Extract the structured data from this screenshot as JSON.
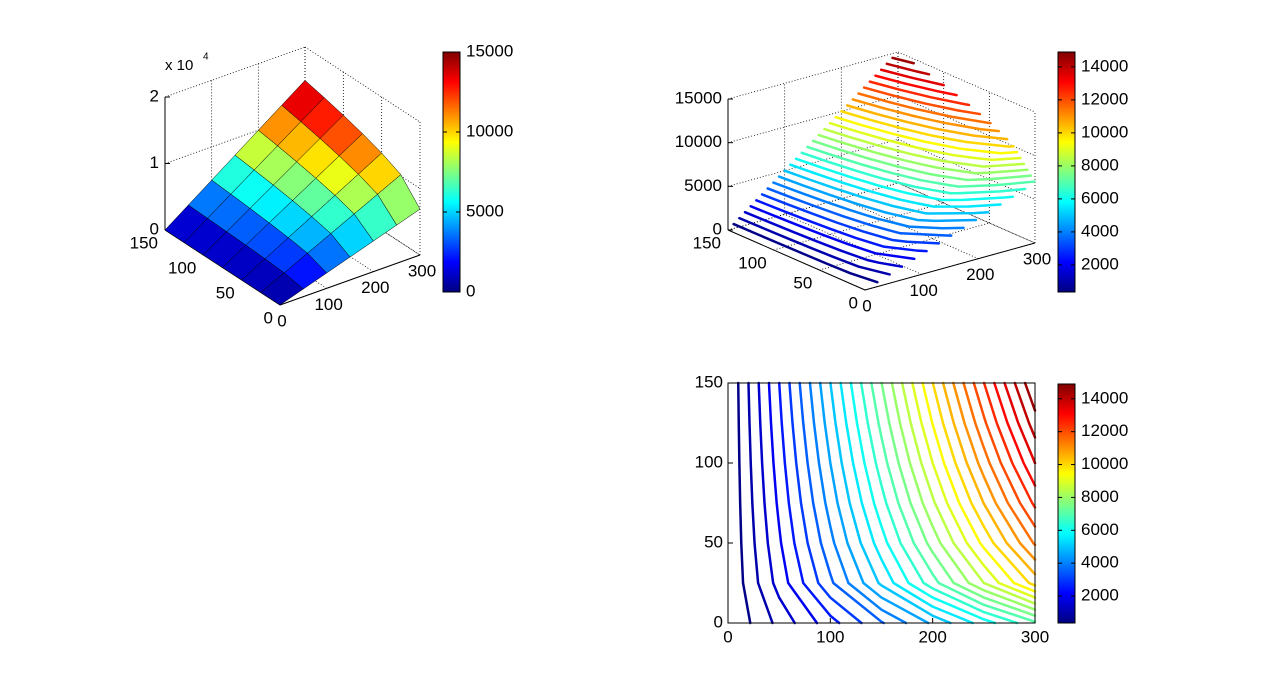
{
  "chart_data": [
    {
      "type": "surface",
      "x": [
        0,
        50,
        100,
        150,
        200,
        250,
        300
      ],
      "y": [
        0,
        25,
        50,
        75,
        100,
        125,
        150
      ],
      "z": [
        [
          0,
          1150,
          2300,
          3450,
          4600,
          5750,
          6900
        ],
        [
          0,
          1700,
          3400,
          5100,
          6800,
          8500,
          10200
        ],
        [
          0,
          1928,
          3856,
          5784,
          7712,
          9640,
          11568
        ],
        [
          0,
          2103,
          4205,
          6308,
          8410,
          10513,
          12615
        ],
        [
          0,
          2250,
          4500,
          6750,
          9000,
          11250,
          13500
        ],
        [
          0,
          2380,
          4760,
          7140,
          9520,
          11900,
          14280
        ],
        [
          0,
          2498,
          4995,
          7493,
          9990,
          12488,
          14985
        ]
      ],
      "xlim": [
        0,
        300
      ],
      "ylim": [
        0,
        150
      ],
      "zlim": [
        0,
        20000
      ],
      "xticks": [
        0,
        100,
        200,
        300
      ],
      "yticks": [
        0,
        50,
        100,
        150
      ],
      "zticks": [
        {
          "value": 0,
          "label": "0"
        },
        {
          "value": 10000,
          "label": "1"
        },
        {
          "value": 20000,
          "label": "2"
        }
      ],
      "zexponent": {
        "base": "x 10",
        "power": "4"
      },
      "clim": [
        0,
        15000
      ],
      "cticks": [
        0,
        5000,
        10000,
        15000
      ],
      "grid": true
    },
    {
      "type": "contour3",
      "levels": [
        500,
        1000,
        1500,
        2000,
        2500,
        3000,
        3500,
        4000,
        4500,
        5000,
        5500,
        6000,
        6500,
        7000,
        7500,
        8000,
        8500,
        9000,
        9500,
        10000,
        10500,
        11000,
        11500,
        12000,
        12500,
        13000,
        13500,
        14000,
        14500
      ],
      "xlim": [
        0,
        300
      ],
      "ylim": [
        0,
        150
      ],
      "zlim": [
        0,
        15000
      ],
      "xticks": [
        0,
        100,
        200,
        300
      ],
      "yticks": [
        0,
        50,
        100,
        150
      ],
      "zticks": [
        0,
        5000,
        10000,
        15000
      ],
      "clim": [
        360,
        14900
      ],
      "cticks": [
        2000,
        4000,
        6000,
        8000,
        10000,
        12000,
        14000
      ],
      "grid": true
    },
    {
      "type": "contour",
      "levels": [
        500,
        1000,
        1500,
        2000,
        2500,
        3000,
        3500,
        4000,
        4500,
        5000,
        5500,
        6000,
        6500,
        7000,
        7500,
        8000,
        8500,
        9000,
        9500,
        10000,
        10500,
        11000,
        11500,
        12000,
        12500,
        13000,
        13500,
        14000,
        14500
      ],
      "xlim": [
        0,
        300
      ],
      "ylim": [
        0,
        150
      ],
      "xticks": [
        0,
        100,
        200,
        300
      ],
      "yticks": [
        0,
        50,
        100,
        150
      ],
      "clim": [
        360,
        14900
      ],
      "cticks": [
        2000,
        4000,
        6000,
        8000,
        10000,
        12000,
        14000
      ]
    }
  ]
}
